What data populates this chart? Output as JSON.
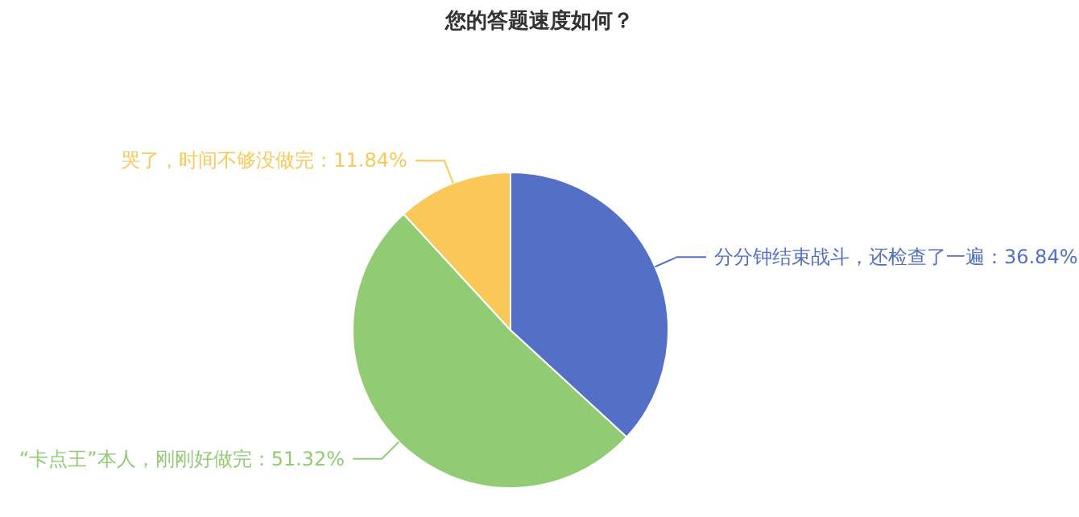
{
  "chart_data": {
    "type": "pie",
    "title": "您的答题速度如何？",
    "categories": [
      "分分钟结束战斗，还检查了一遍",
      "“卡点王”本人，刚刚好做完",
      "哭了，时间不够没做完"
    ],
    "values": [
      36.84,
      51.32,
      11.84
    ],
    "value_labels": [
      "36.84%",
      "51.32%",
      "11.84%"
    ],
    "colors": [
      "#5470c6",
      "#91cc75",
      "#fac858"
    ]
  }
}
